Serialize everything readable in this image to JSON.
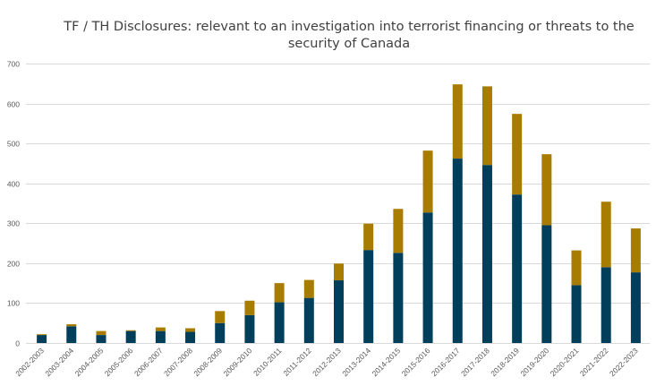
{
  "chart_data": {
    "type": "bar",
    "stacked": true,
    "title": "TF / TH Disclosures: relevant to an investigation into terrorist financing or threats to the security of Canada",
    "xlabel": "",
    "ylabel": "",
    "ylim": [
      0,
      700
    ],
    "yticks": [
      0,
      100,
      200,
      300,
      400,
      500,
      600,
      700
    ],
    "grid": true,
    "legend": "none",
    "categories": [
      "2002-2003",
      "2003-2004",
      "2004-2005",
      "2005-2006",
      "2006-2007",
      "2007-2008",
      "2008-2009",
      "2009-2010",
      "2010-2011",
      "2011-2012",
      "2012-2013",
      "2013-2014",
      "2014-2015",
      "2015-2016",
      "2016-2017",
      "2017-2018",
      "2018-2019",
      "2019-2020",
      "2020-2021",
      "2021-2022",
      "2022-2023"
    ],
    "series": [
      {
        "color": "#003f5c",
        "values": [
          20,
          42,
          20,
          30,
          30,
          28,
          50,
          70,
          102,
          113,
          157,
          233,
          226,
          327,
          462,
          446,
          372,
          295,
          145,
          190,
          177
        ]
      },
      {
        "color": "#a87c00",
        "values": [
          2,
          5,
          10,
          2,
          9,
          9,
          30,
          36,
          48,
          45,
          42,
          66,
          110,
          155,
          186,
          197,
          202,
          178,
          87,
          164,
          110
        ]
      }
    ]
  }
}
